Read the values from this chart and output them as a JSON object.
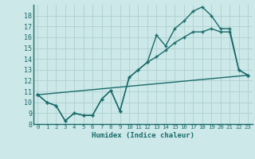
{
  "xlabel": "Humidex (Indice chaleur)",
  "background_color": "#cce8e8",
  "grid_color": "#b0d0d0",
  "line_color": "#1a6b6b",
  "xlim": [
    -0.5,
    23.5
  ],
  "ylim": [
    8,
    19
  ],
  "yticks": [
    8,
    9,
    10,
    11,
    12,
    13,
    14,
    15,
    16,
    17,
    18
  ],
  "xticks": [
    0,
    1,
    2,
    3,
    4,
    5,
    6,
    7,
    8,
    9,
    10,
    11,
    12,
    13,
    14,
    15,
    16,
    17,
    18,
    19,
    20,
    21,
    22,
    23
  ],
  "series1_x": [
    0,
    1,
    2,
    3,
    4,
    5,
    6,
    7,
    8,
    9,
    10,
    11,
    12,
    13,
    14,
    15,
    16,
    17,
    18,
    19,
    20,
    21,
    22,
    23
  ],
  "series1_y": [
    10.7,
    10.0,
    9.7,
    8.3,
    9.0,
    8.8,
    8.8,
    10.3,
    11.1,
    9.2,
    12.3,
    13.0,
    13.7,
    16.2,
    15.2,
    16.8,
    17.5,
    18.4,
    18.8,
    18.0,
    16.8,
    16.8,
    13.0,
    12.5
  ],
  "series2_x": [
    0,
    1,
    2,
    3,
    4,
    5,
    6,
    7,
    8,
    9,
    10,
    11,
    12,
    13,
    14,
    15,
    16,
    17,
    18,
    19,
    20,
    21,
    22,
    23
  ],
  "series2_y": [
    10.7,
    10.0,
    9.7,
    8.3,
    9.0,
    8.8,
    8.8,
    10.3,
    11.1,
    9.2,
    12.3,
    13.0,
    13.7,
    14.2,
    14.8,
    15.5,
    16.0,
    16.5,
    16.5,
    16.8,
    16.5,
    16.5,
    13.0,
    12.5
  ],
  "series3_x": [
    0,
    23
  ],
  "series3_y": [
    10.7,
    12.5
  ]
}
